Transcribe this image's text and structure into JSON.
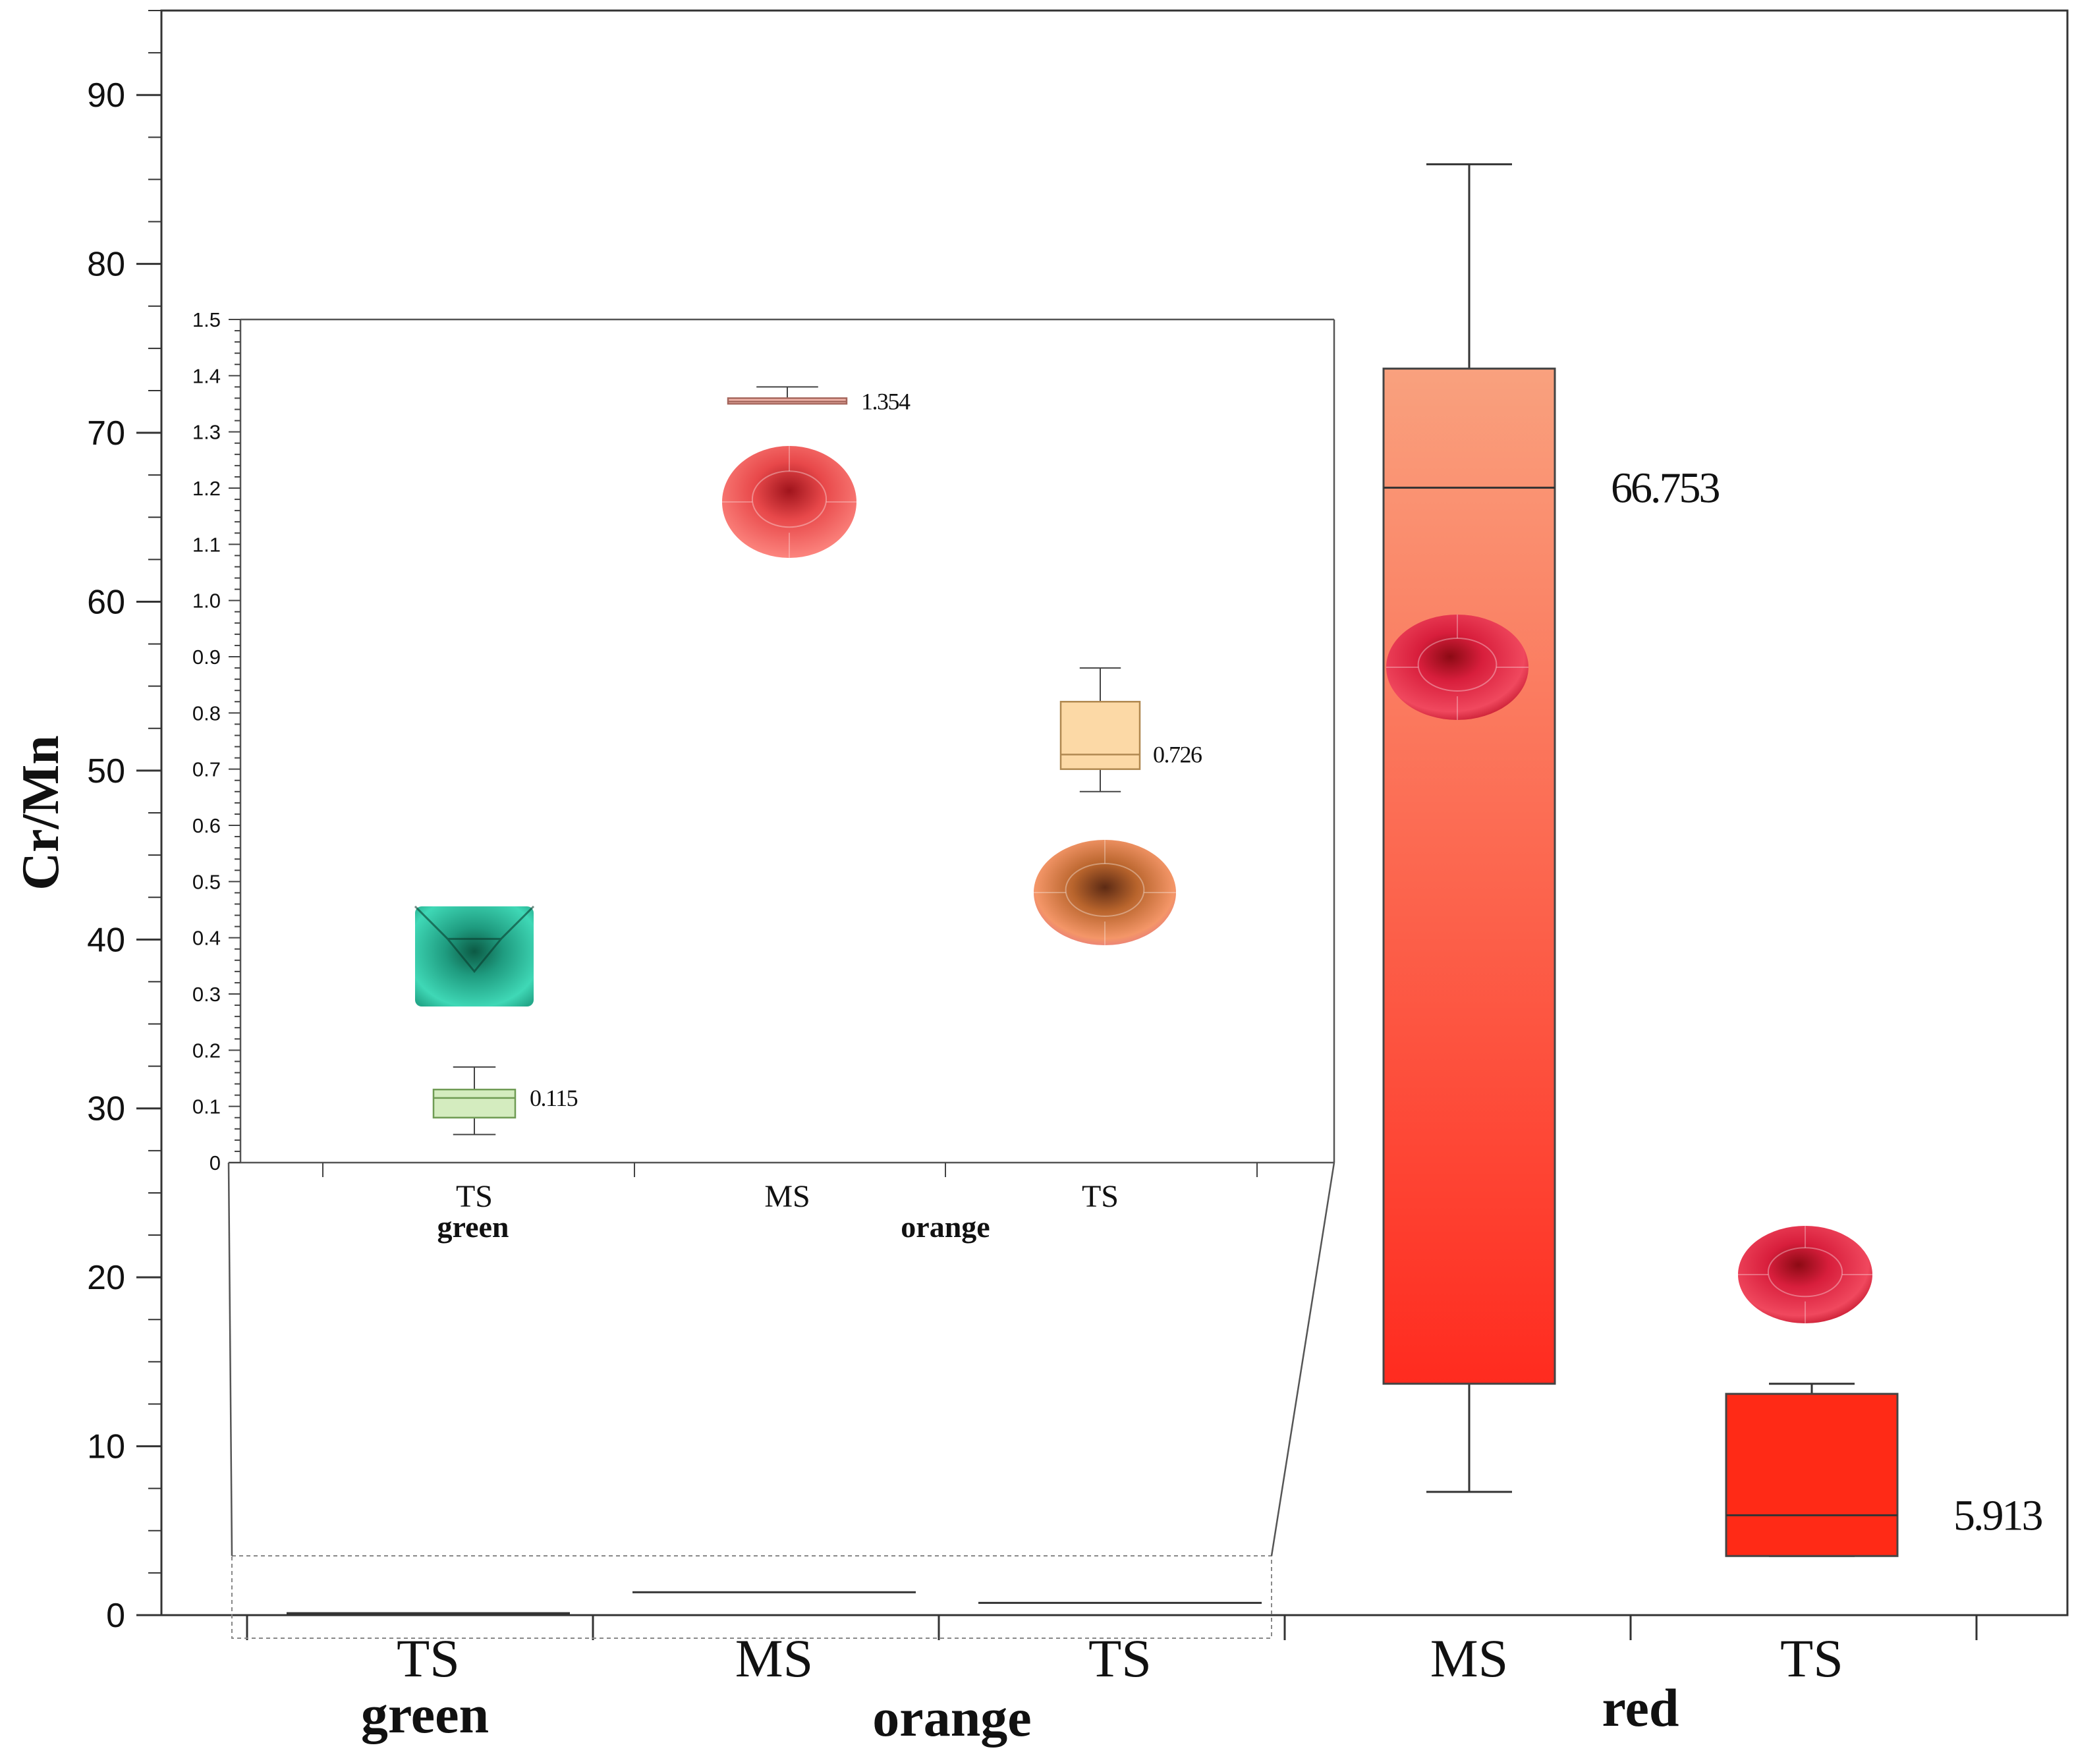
{
  "chart_data": {
    "type": "box",
    "ylabel": "Cr/Mn",
    "ylim": [
      0,
      95
    ],
    "yticks": [
      0,
      10,
      20,
      30,
      40,
      50,
      60,
      70,
      80,
      90
    ],
    "groups": [
      {
        "label": "green",
        "categories": [
          "TS"
        ]
      },
      {
        "label": "orange",
        "categories": [
          "MS",
          "TS"
        ]
      },
      {
        "label": "red",
        "categories": [
          "MS",
          "TS"
        ]
      }
    ],
    "boxes": [
      {
        "group": "green",
        "category": "TS",
        "min": 0.05,
        "q1": 0.08,
        "median": 0.115,
        "q3": 0.13,
        "max": 0.17,
        "median_label": "",
        "color": "#d4ecbf",
        "stroke": "#6f9b54"
      },
      {
        "group": "orange",
        "category": "MS",
        "min": 1.35,
        "q1": 1.35,
        "median": 1.354,
        "q3": 1.36,
        "max": 1.38,
        "median_label": "",
        "color": "#f2b6ab",
        "stroke": "#a5665c"
      },
      {
        "group": "orange",
        "category": "TS",
        "min": 0.66,
        "q1": 0.7,
        "median": 0.726,
        "q3": 0.82,
        "max": 0.88,
        "median_label": "",
        "color": "#fcd9a6",
        "stroke": "#b08850"
      },
      {
        "group": "red",
        "category": "MS",
        "min": 7.3,
        "q1": 13.7,
        "median": 66.753,
        "q3": 73.8,
        "max": 85.9,
        "median_label": "66.753",
        "color_top": "#f9a17e",
        "color_bottom": "#ff2b1f",
        "stroke": "#444444"
      },
      {
        "group": "red",
        "category": "TS",
        "min": 3.5,
        "q1": 3.5,
        "median": 5.913,
        "q3": 13.1,
        "max": 13.7,
        "median_label": "5.913",
        "color": "#ff2a16",
        "stroke": "#444444"
      }
    ],
    "inset": {
      "ylim": [
        0,
        1.5
      ],
      "yticks": [
        "0",
        "0.1",
        "0.2",
        "0.3",
        "0.4",
        "0.5",
        "0.6",
        "0.7",
        "0.8",
        "0.9",
        "1.0",
        "1.1",
        "1.2",
        "1.3",
        "1.4",
        "1.5"
      ],
      "categories": [
        "TS",
        "MS",
        "TS"
      ],
      "groups": [
        "green",
        "orange"
      ],
      "median_labels": [
        "0.115",
        "1.354",
        "0.726"
      ]
    }
  }
}
